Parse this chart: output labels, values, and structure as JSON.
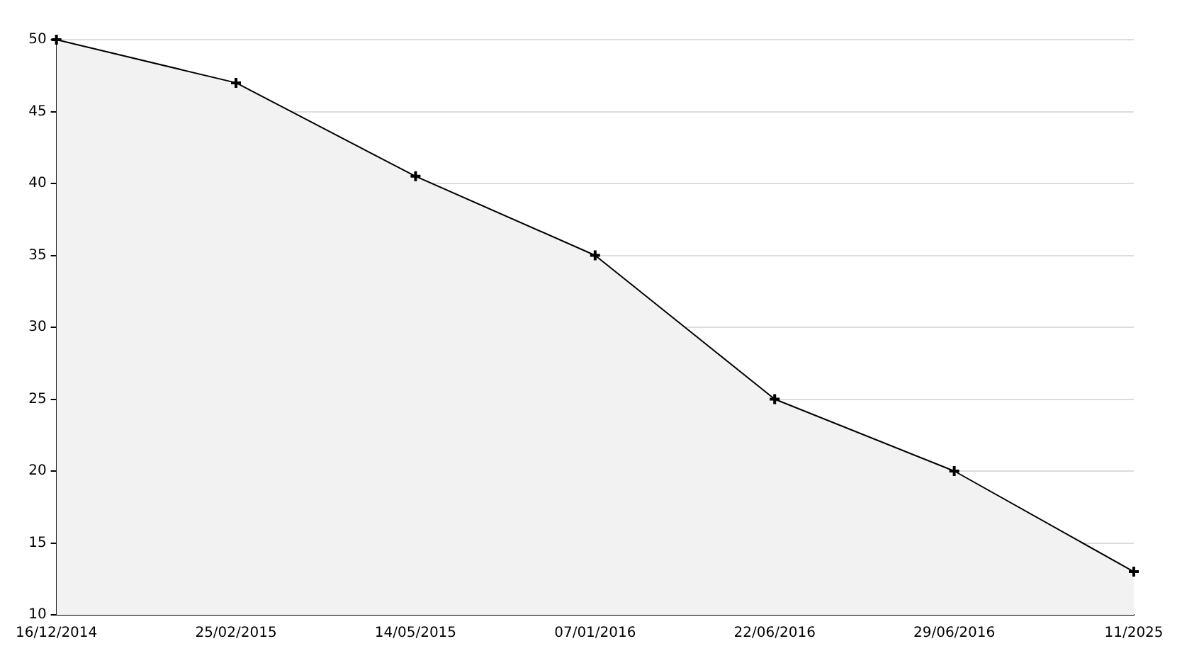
{
  "chart_data": {
    "type": "area",
    "categories": [
      "16/12/2014",
      "25/02/2015",
      "14/05/2015",
      "07/01/2016",
      "22/06/2016",
      "29/06/2016",
      "11/2025"
    ],
    "series": [
      {
        "color": "#000000",
        "values": [
          50,
          47,
          40.5,
          35,
          25,
          20,
          13
        ]
      }
    ],
    "ylim": [
      10,
      50
    ],
    "yticks": [
      10,
      15,
      20,
      25,
      30,
      35,
      40,
      45,
      50
    ],
    "grid": "y",
    "legend": false,
    "marker": "cross"
  }
}
